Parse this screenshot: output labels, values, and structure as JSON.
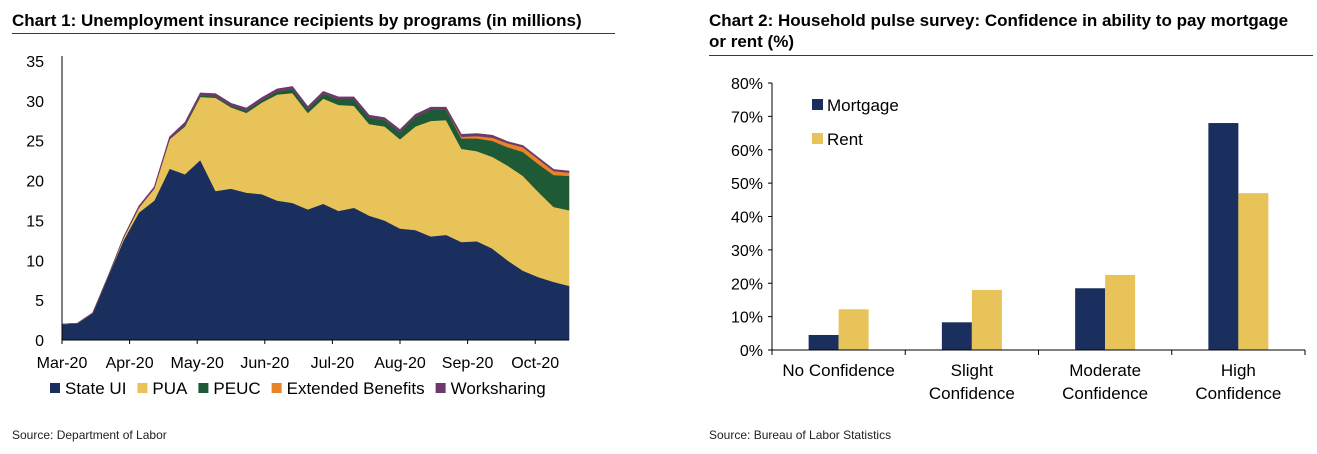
{
  "chart_data": [
    {
      "type": "area",
      "stacked": true,
      "title": "Chart 1: Unemployment insurance recipients by programs (in millions)",
      "xlabel": "",
      "ylabel": "",
      "ylim": [
        0,
        35
      ],
      "yticks": [
        "0",
        "5",
        "10",
        "15",
        "20",
        "25",
        "30",
        "35"
      ],
      "xtick_labels": [
        "Mar-20",
        "Apr-20",
        "May-20",
        "Jun-20",
        "Jul-20",
        "Aug-20",
        "Sep-20",
        "Oct-20"
      ],
      "source": "Source: Department of Labor",
      "series": [
        {
          "name": "State UI",
          "color": "#1b2f5e",
          "values": [
            2.0,
            2.1,
            3.4,
            8.0,
            12.5,
            16.0,
            17.5,
            21.5,
            20.8,
            22.6,
            18.7,
            19.0,
            18.5,
            18.3,
            17.5,
            17.2,
            16.4,
            17.1,
            16.2,
            16.6,
            15.6,
            15.0,
            14.0,
            13.8,
            13.0,
            13.2,
            12.3,
            12.4,
            11.5,
            10.0,
            8.7,
            7.9,
            7.3,
            6.8
          ]
        },
        {
          "name": "PUA",
          "color": "#e8c35a",
          "values": [
            0.0,
            0.0,
            0.0,
            0.0,
            0.3,
            0.6,
            1.5,
            3.7,
            6.0,
            7.9,
            11.7,
            10.2,
            10.0,
            11.5,
            13.3,
            13.8,
            12.1,
            13.2,
            13.3,
            12.8,
            11.5,
            11.8,
            11.2,
            13.0,
            14.5,
            14.4,
            11.7,
            11.3,
            11.5,
            11.9,
            11.9,
            10.7,
            9.4,
            9.5
          ]
        },
        {
          "name": "PEUC",
          "color": "#1e5a36",
          "values": [
            0.0,
            0.0,
            0.0,
            0.0,
            0.0,
            0.0,
            0.0,
            0.0,
            0.2,
            0.2,
            0.2,
            0.2,
            0.3,
            0.3,
            0.4,
            0.5,
            0.5,
            0.6,
            0.7,
            0.8,
            0.8,
            0.8,
            0.9,
            1.2,
            1.4,
            1.3,
            1.3,
            1.6,
            2.0,
            2.3,
            3.0,
            3.5,
            4.0,
            4.3
          ]
        },
        {
          "name": "Extended Benefits",
          "color": "#e8832a",
          "values": [
            0.0,
            0.0,
            0.0,
            0.0,
            0.0,
            0.0,
            0.0,
            0.0,
            0.0,
            0.0,
            0.0,
            0.0,
            0.0,
            0.0,
            0.0,
            0.0,
            0.0,
            0.0,
            0.0,
            0.0,
            0.0,
            0.0,
            0.0,
            0.0,
            0.0,
            0.0,
            0.2,
            0.3,
            0.4,
            0.5,
            0.6,
            0.6,
            0.5,
            0.4
          ]
        },
        {
          "name": "Worksharing",
          "color": "#6b3a6b",
          "values": [
            0.0,
            0.0,
            0.0,
            0.0,
            0.1,
            0.2,
            0.2,
            0.3,
            0.3,
            0.3,
            0.3,
            0.3,
            0.3,
            0.3,
            0.3,
            0.3,
            0.3,
            0.3,
            0.3,
            0.3,
            0.3,
            0.3,
            0.3,
            0.3,
            0.3,
            0.3,
            0.3,
            0.3,
            0.3,
            0.2,
            0.2,
            0.2,
            0.2,
            0.2
          ]
        }
      ]
    },
    {
      "type": "bar",
      "title_line1": "Chart 2: Household pulse survey: Confidence in ability to pay mortgage",
      "title_line2": "or rent (%)",
      "xlabel": "",
      "ylabel": "",
      "ylim": [
        0,
        80
      ],
      "yticks": [
        "0%",
        "10%",
        "20%",
        "30%",
        "40%",
        "50%",
        "60%",
        "70%",
        "80%"
      ],
      "categories": [
        [
          "No Confidence"
        ],
        [
          "Slight",
          "Confidence"
        ],
        [
          "Moderate",
          "Confidence"
        ],
        [
          "High",
          "Confidence"
        ]
      ],
      "source": "Source: Bureau of Labor Statistics",
      "series": [
        {
          "name": "Mortgage",
          "color": "#1b2f5e",
          "values": [
            4.5,
            8.3,
            18.5,
            68.0
          ]
        },
        {
          "name": "Rent",
          "color": "#e8c35a",
          "values": [
            12.2,
            18.0,
            22.5,
            47.0
          ]
        }
      ]
    }
  ]
}
